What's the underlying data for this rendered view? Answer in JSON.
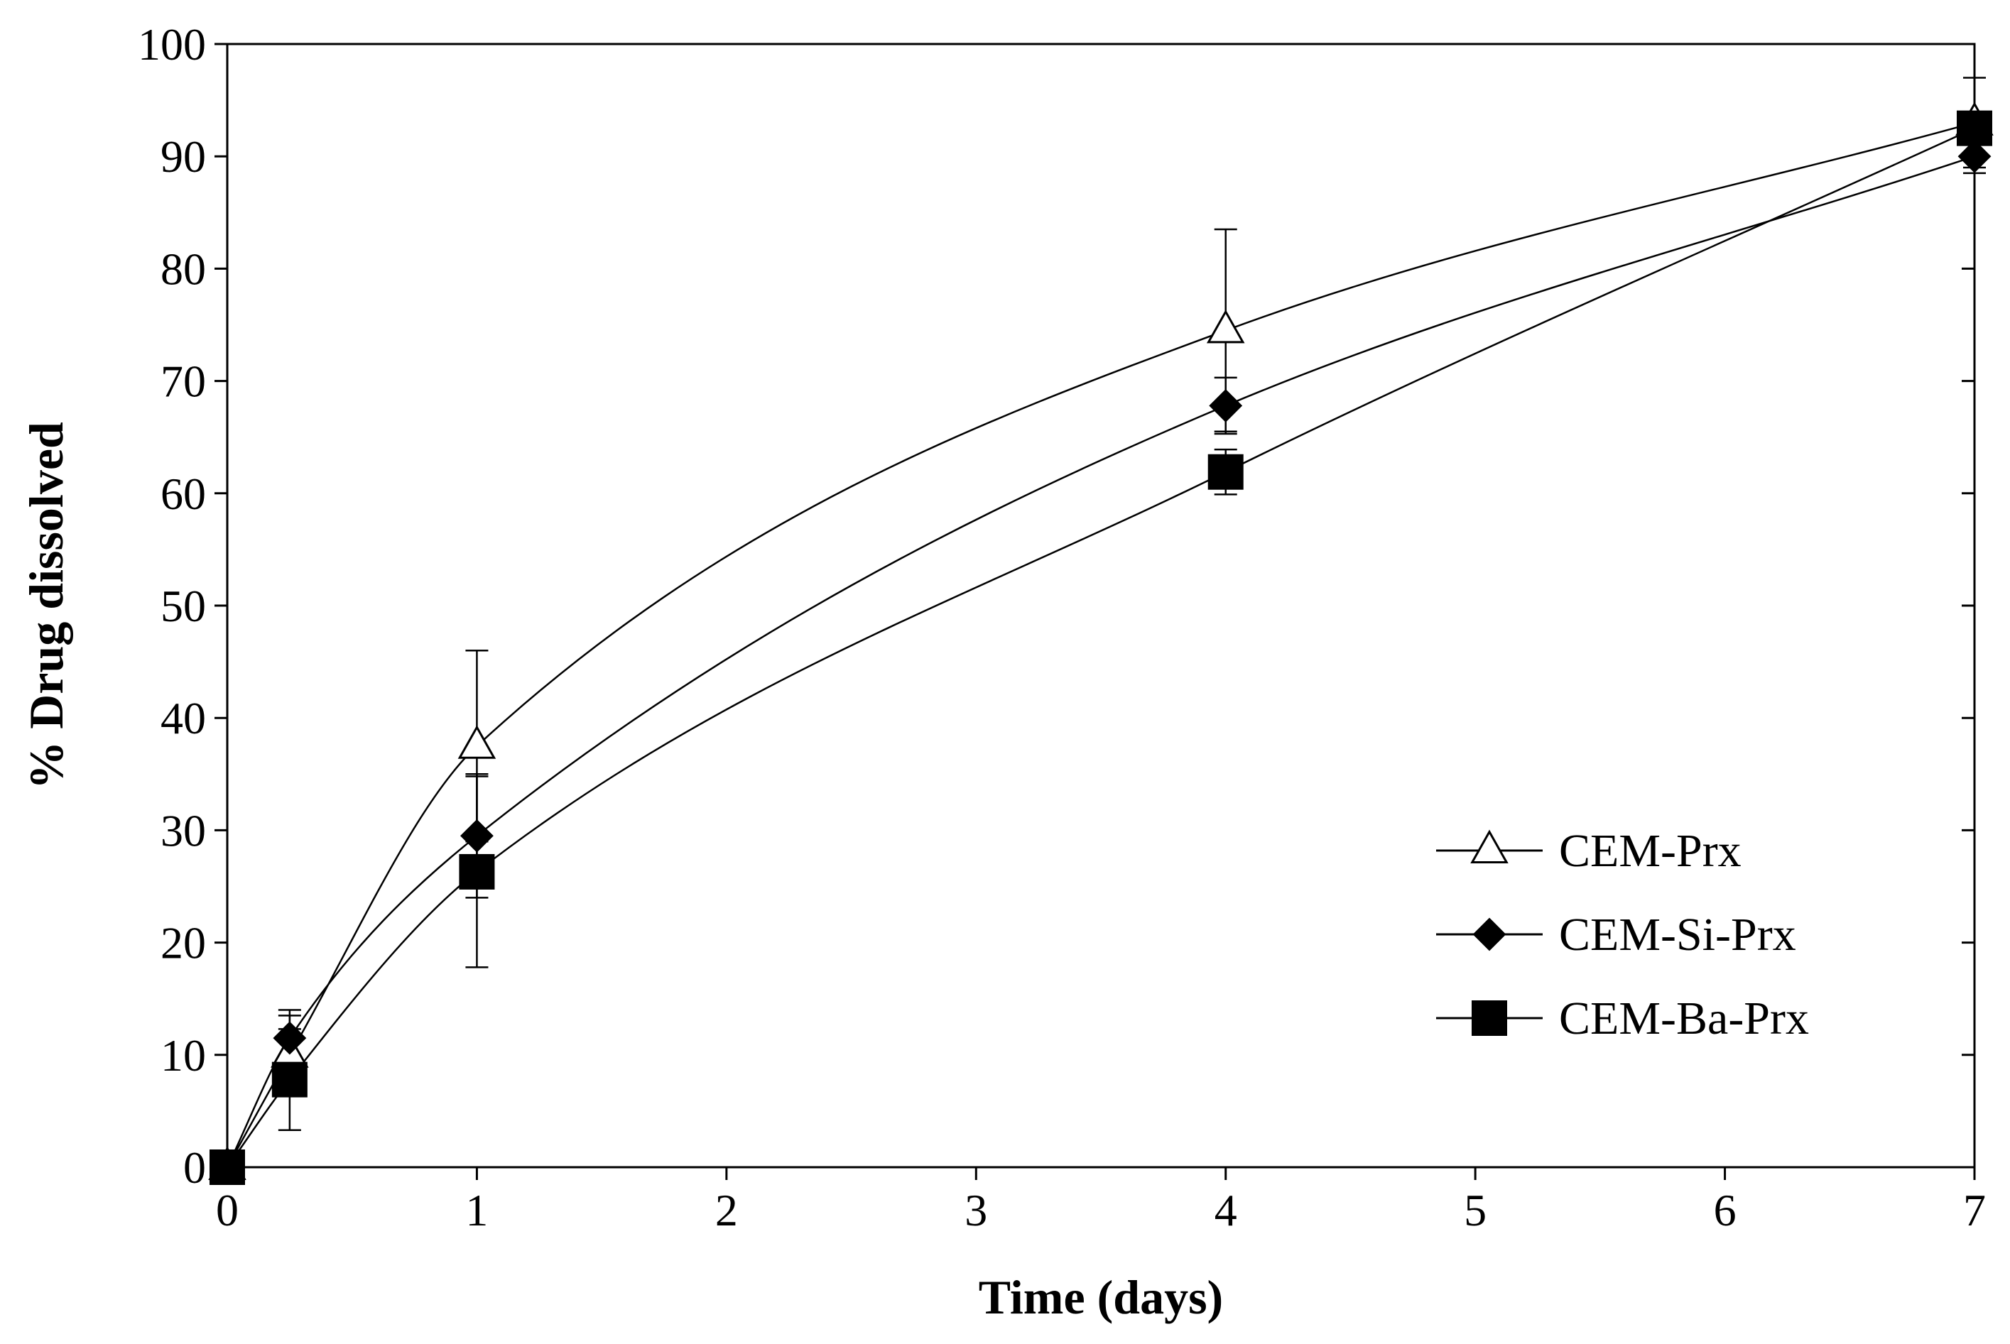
{
  "chart_data": {
    "type": "line",
    "title": "",
    "xlabel": "Time (days)",
    "ylabel": "% Drug dissolved",
    "xlim": [
      0,
      7
    ],
    "ylim": [
      0,
      100
    ],
    "xticks": [
      0,
      1,
      2,
      3,
      4,
      5,
      6,
      7
    ],
    "yticks": [
      0,
      10,
      20,
      30,
      40,
      50,
      60,
      70,
      80,
      90,
      100
    ],
    "x": [
      0,
      0.25,
      1,
      4,
      7
    ],
    "grid": false,
    "legend_position": "bottom-right",
    "series": [
      {
        "name": "CEM-Prx",
        "marker": "open-triangle",
        "values": [
          0,
          10,
          37.5,
          74.5,
          93
        ],
        "error": [
          0,
          3.5,
          8.5,
          9,
          4
        ]
      },
      {
        "name": "CEM-Si-Prx",
        "marker": "filled-diamond",
        "values": [
          0,
          11.5,
          29.5,
          67.8,
          90
        ],
        "error": [
          0,
          2.5,
          5.5,
          2.5,
          1.5
        ]
      },
      {
        "name": "CEM-Ba-Prx",
        "marker": "filled-square",
        "values": [
          0,
          7.8,
          26.3,
          61.9,
          92.5
        ],
        "error": [
          0,
          4.5,
          8.5,
          2,
          0
        ]
      }
    ]
  }
}
